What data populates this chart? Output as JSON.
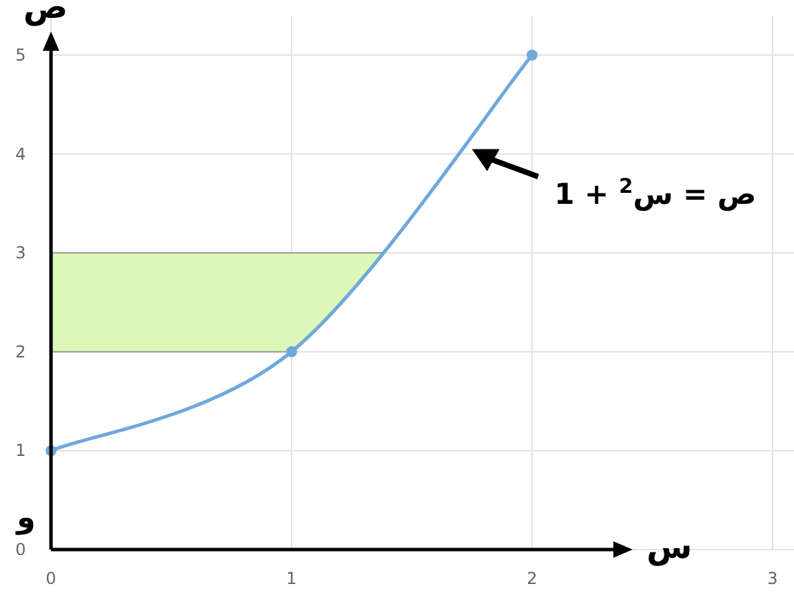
{
  "chart_data": {
    "type": "line",
    "xlabel": "س",
    "ylabel": "ص",
    "annotations": [
      {
        "text": "ص = س$^{2}$ + 1",
        "x": 1.75,
        "y": 4.05
      },
      "و"
    ],
    "x": [
      0,
      1,
      2
    ],
    "series": [
      {
        "color": "#6fa8dc",
        "values": [
          1,
          2,
          5
        ]
      }
    ],
    "xlim": [
      0,
      3.1
    ],
    "ylim": [
      0,
      5.4
    ],
    "xticks": [
      0,
      1,
      2,
      3
    ],
    "yticks": [
      0,
      1,
      2,
      3,
      4,
      5
    ],
    "bands": [
      {
        "axis": "y",
        "from": 2,
        "to": 3,
        "color": "#dcf7b8"
      }
    ],
    "grid": true,
    "marker": "circle",
    "line_style": "solid"
  }
}
